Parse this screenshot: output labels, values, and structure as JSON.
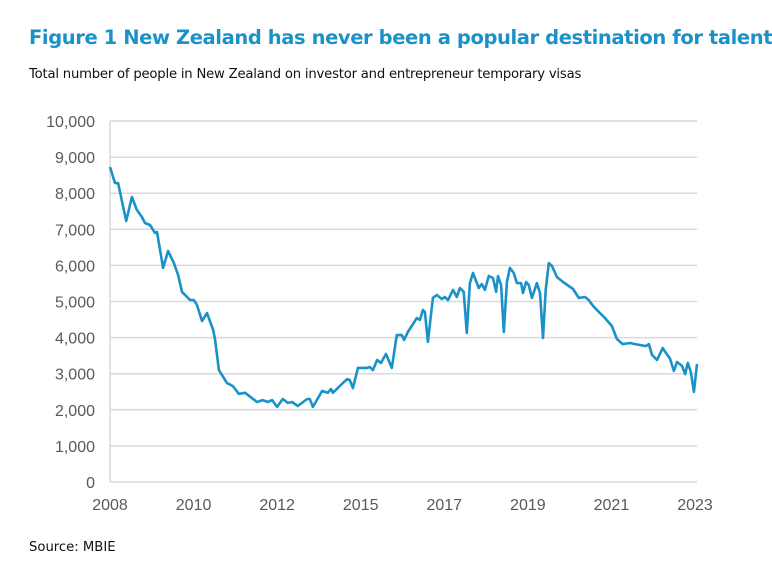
{
  "title": "Figure 1 New Zealand has never been a popular destination for talent",
  "subtitle": "Total number of people in New Zealand on investor and entrepreneur temporary visas",
  "source": "Source: MBIE",
  "chart_data": {
    "type": "line",
    "title": "Figure 1 New Zealand has never been a popular destination for talent",
    "subtitle": "Total number of people in New Zealand on investor and entrepreneur temporary visas",
    "xlabel": "",
    "ylabel": "",
    "ylim": [
      0,
      10000
    ],
    "xlim": [
      2008.0,
      2023.25
    ],
    "yticks": [
      "0",
      "1,000",
      "2,000",
      "3,000",
      "4,000",
      "5,000",
      "6,000",
      "7,000",
      "8,000",
      "9,000",
      "10,000"
    ],
    "xticks": [
      "2008",
      "2010",
      "2012",
      "2015",
      "2017",
      "2019",
      "2021",
      "2023"
    ],
    "grid": true,
    "legend": "none",
    "line_color": "#1a92c8",
    "x": [
      2008.0,
      2008.13,
      2008.21,
      2008.42,
      2008.57,
      2008.7,
      2008.83,
      2008.91,
      2009.04,
      2009.17,
      2009.22,
      2009.38,
      2009.51,
      2009.66,
      2009.77,
      2009.87,
      2010.08,
      2010.18,
      2010.26,
      2010.39,
      2010.52,
      2010.68,
      2010.73,
      2010.83,
      2011.04,
      2011.19,
      2011.35,
      2011.51,
      2011.82,
      2011.97,
      2012.1,
      2012.21,
      2012.34,
      2012.49,
      2012.62,
      2012.73,
      2012.88,
      2013.12,
      2013.19,
      2013.27,
      2013.51,
      2013.66,
      2013.74,
      2013.79,
      2013.97,
      2014.16,
      2014.23,
      2014.31,
      2014.44,
      2014.68,
      2014.75,
      2014.83,
      2014.94,
      2015.04,
      2015.17,
      2015.32,
      2015.45,
      2015.58,
      2015.64,
      2015.74,
      2015.97,
      2016.05,
      2016.13,
      2016.18,
      2016.26,
      2016.39,
      2016.49,
      2016.62,
      2016.7,
      2016.78,
      2016.91,
      2017.01,
      2017.09,
      2017.19,
      2017.27,
      2017.35,
      2017.43,
      2017.58,
      2017.66,
      2017.74,
      2017.84,
      2017.95,
      2018.03,
      2018.08,
      2018.16,
      2018.23,
      2018.31,
      2018.39,
      2018.49,
      2018.57,
      2018.68,
      2018.73,
      2018.81,
      2018.88,
      2018.96,
      2019.09,
      2019.17,
      2019.25,
      2019.32,
      2019.4,
      2019.48,
      2019.61,
      2019.77,
      2020.03,
      2020.18,
      2020.34,
      2020.44,
      2020.55,
      2020.73,
      2020.86,
      2021.04,
      2021.17,
      2021.32,
      2021.51,
      2021.64,
      2021.77,
      2021.92,
      2022.0,
      2022.08,
      2022.21,
      2022.36,
      2022.55,
      2022.65,
      2022.73,
      2022.86,
      2022.94,
      2023.01,
      2023.09,
      2023.17,
      2023.25
    ],
    "values": [
      8726,
      8280,
      8280,
      7230,
      7895,
      7535,
      7340,
      7175,
      7120,
      6900,
      6925,
      5930,
      6400,
      6065,
      5735,
      5265,
      5040,
      5040,
      4900,
      4460,
      4680,
      4210,
      3935,
      3100,
      2740,
      2660,
      2440,
      2470,
      2215,
      2270,
      2215,
      2270,
      2080,
      2300,
      2190,
      2215,
      2105,
      2300,
      2300,
      2080,
      2520,
      2470,
      2575,
      2470,
      2660,
      2850,
      2825,
      2600,
      3160,
      3160,
      3185,
      3100,
      3380,
      3300,
      3545,
      3160,
      4070,
      4070,
      3935,
      4155,
      4540,
      4490,
      4765,
      4710,
      3880,
      5100,
      5180,
      5070,
      5125,
      5040,
      5320,
      5125,
      5375,
      5265,
      4130,
      5510,
      5790,
      5375,
      5485,
      5320,
      5705,
      5650,
      5265,
      5705,
      5455,
      4155,
      5540,
      5930,
      5790,
      5510,
      5510,
      5235,
      5540,
      5455,
      5100,
      5510,
      5235,
      3990,
      5320,
      6065,
      5985,
      5680,
      5540,
      5345,
      5100,
      5125,
      5040,
      4875,
      4680,
      4540,
      4320,
      3960,
      3820,
      3850,
      3820,
      3795,
      3765,
      3820,
      3520,
      3380,
      3710,
      3410,
      3075,
      3325,
      3215,
      2990,
      3300,
      3050,
      2495,
      3270
    ]
  }
}
